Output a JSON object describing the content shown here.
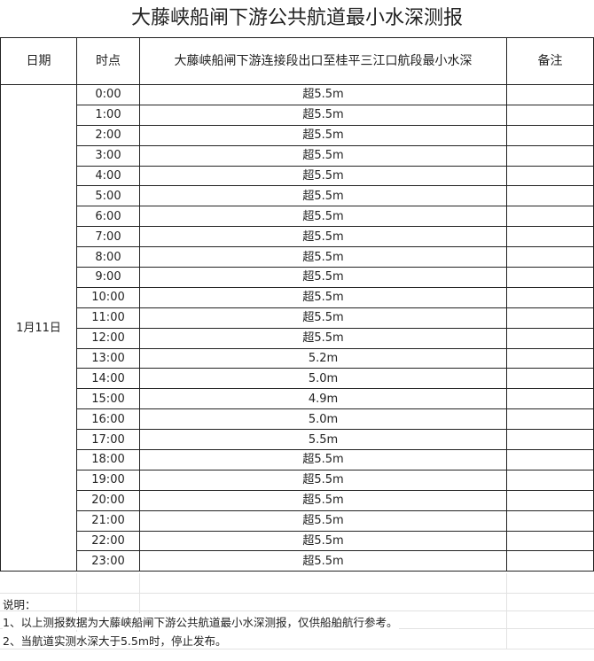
{
  "title": "大藤峡船闸下游公共航道最小水深测报",
  "headers": {
    "date": "日期",
    "time": "时点",
    "depth": "大藤峡船闸下游连接段出口至桂平三江口航段最小水深",
    "remark": "备注"
  },
  "date": "1月11日",
  "rows": [
    {
      "time": "0:00",
      "depth": "超5.5m",
      "remark": ""
    },
    {
      "time": "1:00",
      "depth": "超5.5m",
      "remark": ""
    },
    {
      "time": "2:00",
      "depth": "超5.5m",
      "remark": ""
    },
    {
      "time": "3:00",
      "depth": "超5.5m",
      "remark": ""
    },
    {
      "time": "4:00",
      "depth": "超5.5m",
      "remark": ""
    },
    {
      "time": "5:00",
      "depth": "超5.5m",
      "remark": ""
    },
    {
      "time": "6:00",
      "depth": "超5.5m",
      "remark": ""
    },
    {
      "time": "7:00",
      "depth": "超5.5m",
      "remark": ""
    },
    {
      "time": "8:00",
      "depth": "超5.5m",
      "remark": ""
    },
    {
      "time": "9:00",
      "depth": "超5.5m",
      "remark": ""
    },
    {
      "time": "10:00",
      "depth": "超5.5m",
      "remark": ""
    },
    {
      "time": "11:00",
      "depth": "超5.5m",
      "remark": ""
    },
    {
      "time": "12:00",
      "depth": "超5.5m",
      "remark": ""
    },
    {
      "time": "13:00",
      "depth": "5.2m",
      "remark": ""
    },
    {
      "time": "14:00",
      "depth": "5.0m",
      "remark": ""
    },
    {
      "time": "15:00",
      "depth": "4.9m",
      "remark": ""
    },
    {
      "time": "16:00",
      "depth": "5.0m",
      "remark": ""
    },
    {
      "time": "17:00",
      "depth": "5.5m",
      "remark": ""
    },
    {
      "time": "18:00",
      "depth": "超5.5m",
      "remark": ""
    },
    {
      "time": "19:00",
      "depth": "超5.5m",
      "remark": ""
    },
    {
      "time": "20:00",
      "depth": "超5.5m",
      "remark": ""
    },
    {
      "time": "21:00",
      "depth": "超5.5m",
      "remark": ""
    },
    {
      "time": "22:00",
      "depth": "超5.5m",
      "remark": ""
    },
    {
      "time": "23:00",
      "depth": "超5.5m",
      "remark": ""
    }
  ],
  "notes": {
    "heading": "说明：",
    "line1": "1、以上测报数据为大藤峡船闸下游公共航道最小水深测报，仅供船舶航行参考。",
    "line2": "2、当航道实测水深大于5.5m时，停止发布。"
  }
}
